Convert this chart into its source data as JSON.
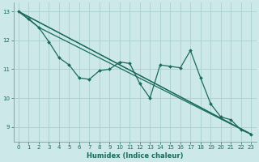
{
  "xlabel": "Humidex (Indice chaleur)",
  "bg_color": "#cce8e8",
  "line_color": "#1a6b5a",
  "grid_color": "#aacfcf",
  "spine_color": "#7aadad",
  "xlim": [
    -0.5,
    23.5
  ],
  "ylim": [
    8.5,
    13.3
  ],
  "yticks": [
    9,
    10,
    11,
    12,
    13
  ],
  "xticks": [
    0,
    1,
    2,
    3,
    4,
    5,
    6,
    7,
    8,
    9,
    10,
    11,
    12,
    13,
    14,
    15,
    16,
    17,
    18,
    19,
    20,
    21,
    22,
    23
  ],
  "line1_x": [
    0,
    1,
    2,
    3,
    4,
    5,
    6,
    7,
    8,
    9,
    10,
    11,
    12,
    13,
    14,
    15,
    16,
    17,
    18,
    19,
    20,
    21,
    22,
    23
  ],
  "line1_y": [
    13.0,
    12.75,
    12.45,
    11.95,
    11.4,
    11.15,
    10.7,
    10.65,
    10.95,
    11.0,
    11.25,
    11.2,
    10.5,
    10.0,
    11.15,
    11.1,
    11.05,
    11.65,
    10.7,
    9.8,
    9.35,
    9.25,
    8.9,
    8.75
  ],
  "line2_x": [
    0,
    23
  ],
  "line2_y": [
    13.0,
    8.75
  ],
  "line3_x": [
    0,
    2,
    23
  ],
  "line3_y": [
    13.0,
    12.45,
    8.75
  ],
  "line4_x": [
    0,
    3,
    23
  ],
  "line4_y": [
    13.0,
    12.45,
    8.75
  ]
}
